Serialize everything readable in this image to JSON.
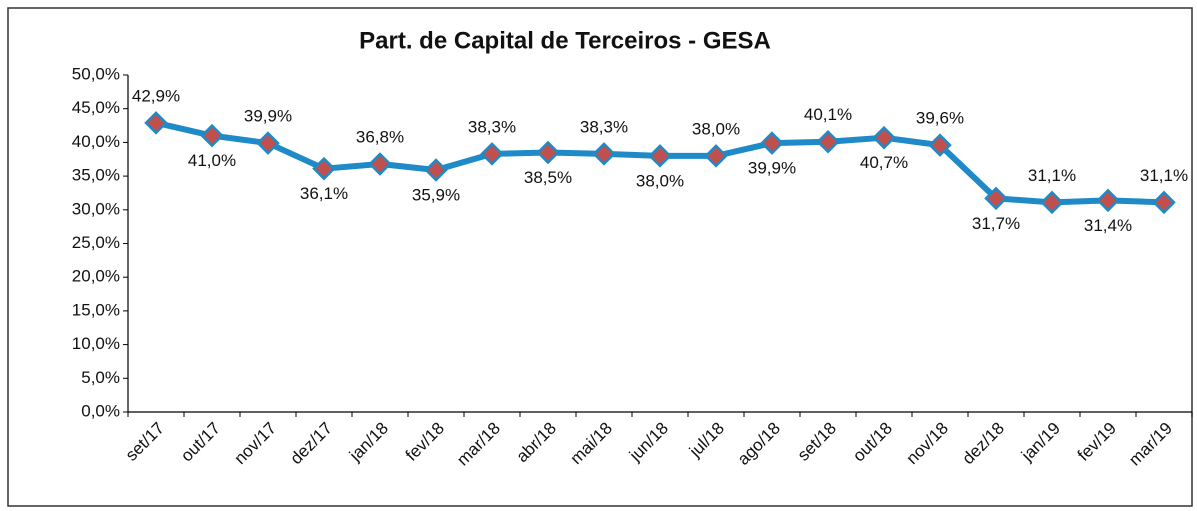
{
  "chart_data": {
    "type": "line",
    "title": "Part. de Capital de Terceiros - GESA",
    "categories": [
      "set/17",
      "out/17",
      "nov/17",
      "dez/17",
      "jan/18",
      "fev/18",
      "mar/18",
      "abr/18",
      "mai/18",
      "jun/18",
      "jul/18",
      "ago/18",
      "set/18",
      "out/18",
      "nov/18",
      "dez/18",
      "jan/19",
      "fev/19",
      "mar/19"
    ],
    "series": [
      {
        "name": "GESA",
        "color": "#1f8ac8",
        "values": [
          42.9,
          41.0,
          39.9,
          36.1,
          36.8,
          35.9,
          38.3,
          38.5,
          38.3,
          38.0,
          38.0,
          39.9,
          40.1,
          40.7,
          39.6,
          31.7,
          31.1,
          31.4,
          31.1
        ],
        "value_labels": [
          "42,9%",
          "41,0%",
          "39,9%",
          "36,1%",
          "36,8%",
          "35,9%",
          "38,3%",
          "38,5%",
          "38,3%",
          "38,0%",
          "38,0%",
          "39,9%",
          "40,1%",
          "40,7%",
          "39,6%",
          "31,7%",
          "31,1%",
          "31,4%",
          "31,1%"
        ]
      }
    ],
    "marker_color": "#c0504d",
    "ylim": [
      0,
      50
    ],
    "yticks": [
      {
        "value": 0,
        "label": "0,0%"
      },
      {
        "value": 5,
        "label": "5,0%"
      },
      {
        "value": 10,
        "label": "10,0%"
      },
      {
        "value": 15,
        "label": "15,0%"
      },
      {
        "value": 20,
        "label": "20,0%"
      },
      {
        "value": 25,
        "label": "25,0%"
      },
      {
        "value": 30,
        "label": "30,0%"
      },
      {
        "value": 35,
        "label": "35,0%"
      },
      {
        "value": 40,
        "label": "40,0%"
      },
      {
        "value": 45,
        "label": "45,0%"
      },
      {
        "value": 50,
        "label": "50,0%"
      }
    ],
    "grid": false
  }
}
